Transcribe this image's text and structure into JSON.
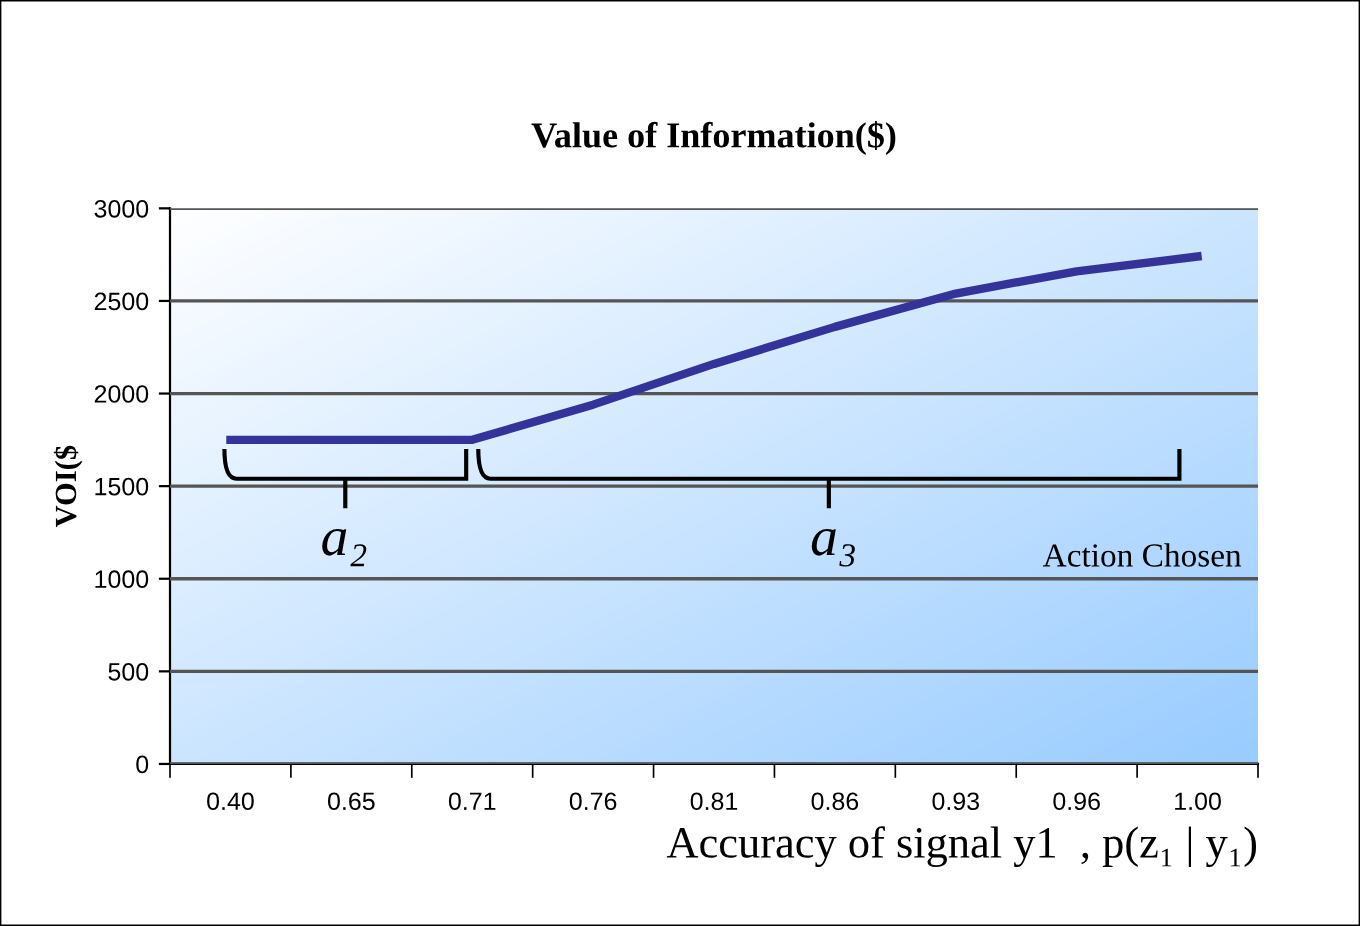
{
  "chart_data": {
    "type": "line",
    "title": "Value of Information($)",
    "xlabel": "Accuracy of signal y1  , p(z₁ | y₁)",
    "ylabel": "VOI($",
    "categories": [
      "0.40",
      "0.65",
      "0.71",
      "0.76",
      "0.81",
      "0.86",
      "0.93",
      "0.96",
      "1.00"
    ],
    "series": [
      {
        "color": "#333399",
        "values": [
          1750,
          1750,
          1750,
          1940,
          2160,
          2360,
          2540,
          2660,
          2740
        ]
      }
    ],
    "ylim": [
      0,
      3000
    ],
    "yticks": [
      0,
      500,
      1000,
      1500,
      2000,
      2500,
      3000
    ],
    "grid": "y",
    "marker": "none",
    "line_style": "solid",
    "annotations": [
      "a₂",
      "a₃",
      "Action Chosen"
    ]
  }
}
